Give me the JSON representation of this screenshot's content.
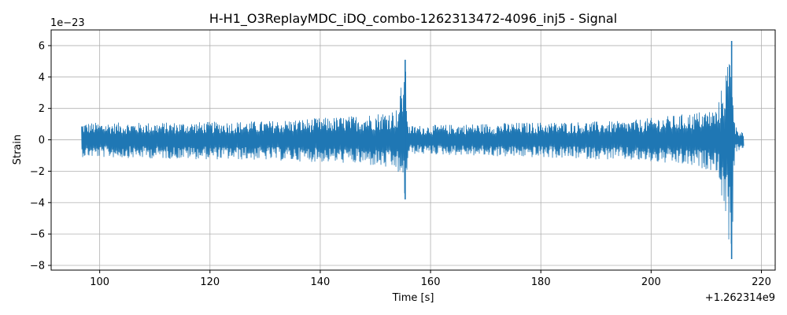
{
  "chart_data": {
    "type": "line",
    "title": "H-H1_O3ReplayMDC_iDQ_combo-1262313472-4096_inj5 - Signal",
    "xlabel": "Time [s]",
    "ylabel": "Strain",
    "x_offset_label": "+1.262314e9",
    "y_scale_label": "1e−23",
    "xlim": [
      91.2,
      222.5
    ],
    "ylim": [
      -8.3,
      7.0
    ],
    "x_ticks": [
      100,
      120,
      140,
      160,
      180,
      200,
      220
    ],
    "x_tick_labels": [
      "100",
      "120",
      "140",
      "160",
      "180",
      "200",
      "220"
    ],
    "y_ticks": [
      -8,
      -6,
      -4,
      -2,
      0,
      2,
      4,
      6
    ],
    "y_tick_labels": [
      "−8",
      "−6",
      "−4",
      "−2",
      "0",
      "2",
      "4",
      "6"
    ],
    "grid": true,
    "series": [
      {
        "color": "#1f77b4",
        "envelope_description": "noise band",
        "envelope": [
          {
            "x": 96.7,
            "upper": 1.1,
            "lower": -1.1
          },
          {
            "x": 110,
            "upper": 1.1,
            "lower": -1.2
          },
          {
            "x": 130,
            "upper": 1.2,
            "lower": -1.3
          },
          {
            "x": 145,
            "upper": 1.5,
            "lower": -1.5
          },
          {
            "x": 150,
            "upper": 1.7,
            "lower": -1.7
          },
          {
            "x": 154,
            "upper": 2.0,
            "lower": -2.0
          },
          {
            "x": 155.4,
            "upper": 5.1,
            "lower": -3.8
          },
          {
            "x": 156.0,
            "upper": 0.9,
            "lower": -0.9
          },
          {
            "x": 175,
            "upper": 1.1,
            "lower": -1.1
          },
          {
            "x": 195,
            "upper": 1.2,
            "lower": -1.3
          },
          {
            "x": 205,
            "upper": 1.6,
            "lower": -1.6
          },
          {
            "x": 212,
            "upper": 2.0,
            "lower": -2.0
          },
          {
            "x": 214.6,
            "upper": 6.3,
            "lower": -7.6
          },
          {
            "x": 215.2,
            "upper": 0.9,
            "lower": -0.9
          },
          {
            "x": 216.8,
            "upper": 0.5,
            "lower": -0.5
          }
        ]
      }
    ]
  }
}
